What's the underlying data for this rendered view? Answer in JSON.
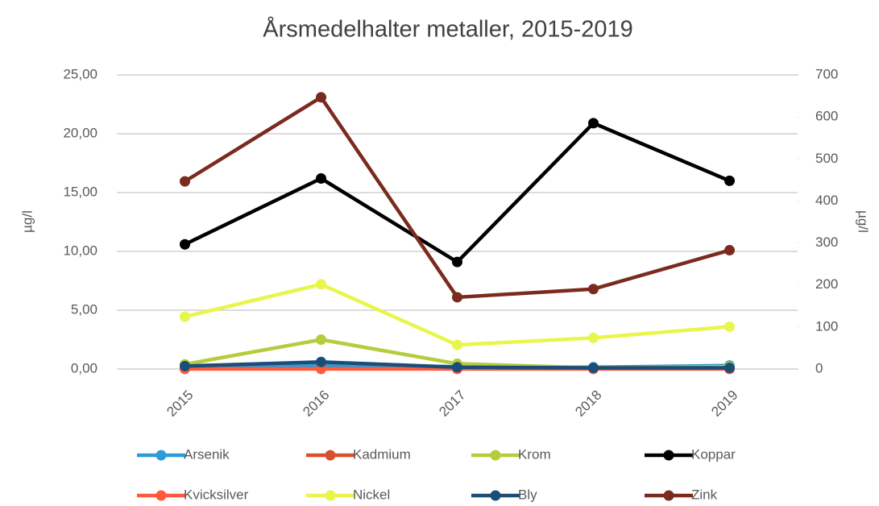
{
  "chart_data": {
    "type": "line",
    "title": "Årsmedelhalter metaller, 2015-2019",
    "ylabel": "µg/l",
    "y2label": "µg/l",
    "categories": [
      "2015",
      "2016",
      "2017",
      "2018",
      "2019"
    ],
    "ylim": [
      0,
      25
    ],
    "yticks": [
      {
        "value": 0,
        "label": "0,00"
      },
      {
        "value": 5,
        "label": "5,00"
      },
      {
        "value": 10,
        "label": "10,00"
      },
      {
        "value": 15,
        "label": "15,00"
      },
      {
        "value": 20,
        "label": "20,00"
      },
      {
        "value": 25,
        "label": "25,00"
      }
    ],
    "y2lim": [
      0,
      700
    ],
    "y2ticks": [
      0,
      100,
      200,
      300,
      400,
      500,
      600,
      700
    ],
    "grid": true,
    "legend": "bottom",
    "series": [
      {
        "name": "Arsenik",
        "color": "#2e9bd6",
        "values": [
          0.3,
          0.3,
          0.2,
          0.15,
          0.3
        ]
      },
      {
        "name": "Kadmium",
        "color": "#d9502d",
        "values": [
          0.02,
          0.02,
          0.02,
          0.02,
          0.02
        ]
      },
      {
        "name": "Krom",
        "color": "#b5cc3c",
        "values": [
          0.4,
          2.5,
          0.45,
          0.1,
          0.2
        ]
      },
      {
        "name": "Koppar",
        "color": "#000000",
        "values": [
          10.6,
          16.2,
          9.1,
          20.9,
          16.0
        ]
      },
      {
        "name": "Kvicksilver",
        "color": "#ff5a3c",
        "values": [
          0.01,
          0.01,
          0.01,
          0.01,
          0.01
        ]
      },
      {
        "name": "Nickel",
        "color": "#e8f54a",
        "values": [
          4.45,
          7.2,
          2.05,
          2.65,
          3.6
        ]
      },
      {
        "name": "Bly",
        "color": "#1a4e79",
        "values": [
          0.25,
          0.6,
          0.15,
          0.1,
          0.1
        ]
      },
      {
        "name": "Zink",
        "color": "#7b2a1e",
        "values": [
          15.95,
          23.1,
          6.1,
          6.8,
          10.1
        ]
      }
    ]
  }
}
